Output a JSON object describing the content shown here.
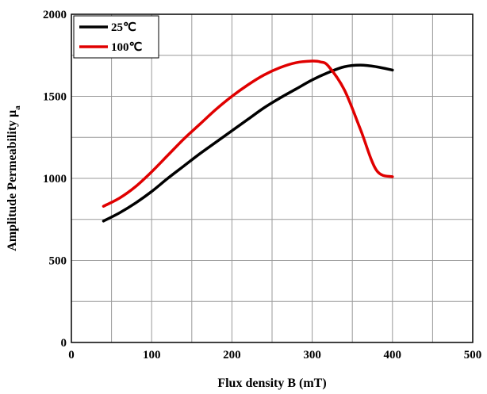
{
  "chart_data": {
    "type": "line",
    "xlabel": "Flux density B (mT)",
    "ylabel_main": "Amplitude Permeability μ",
    "ylabel_sub": "a",
    "xlim": [
      0,
      500
    ],
    "ylim": [
      0,
      2000
    ],
    "xticks": [
      0,
      100,
      200,
      300,
      400,
      500
    ],
    "yticks": [
      0,
      500,
      1000,
      1500,
      2000
    ],
    "grid": true,
    "legend_position": "top-left",
    "series": [
      {
        "name": "25℃",
        "color": "#000000",
        "x": [
          40,
          60,
          80,
          100,
          120,
          140,
          160,
          180,
          200,
          220,
          240,
          260,
          280,
          300,
          320,
          340,
          360,
          380,
          400
        ],
        "y": [
          740,
          790,
          850,
          920,
          1000,
          1075,
          1150,
          1220,
          1290,
          1360,
          1430,
          1490,
          1545,
          1600,
          1645,
          1680,
          1690,
          1680,
          1660
        ]
      },
      {
        "name": "100℃",
        "color": "#e00000",
        "x": [
          40,
          60,
          80,
          100,
          120,
          140,
          160,
          180,
          200,
          220,
          240,
          260,
          280,
          300,
          310,
          320,
          340,
          360,
          380,
          400
        ],
        "y": [
          830,
          880,
          950,
          1040,
          1140,
          1240,
          1330,
          1420,
          1500,
          1570,
          1630,
          1675,
          1705,
          1715,
          1710,
          1685,
          1540,
          1300,
          1050,
          1010
        ]
      }
    ]
  }
}
